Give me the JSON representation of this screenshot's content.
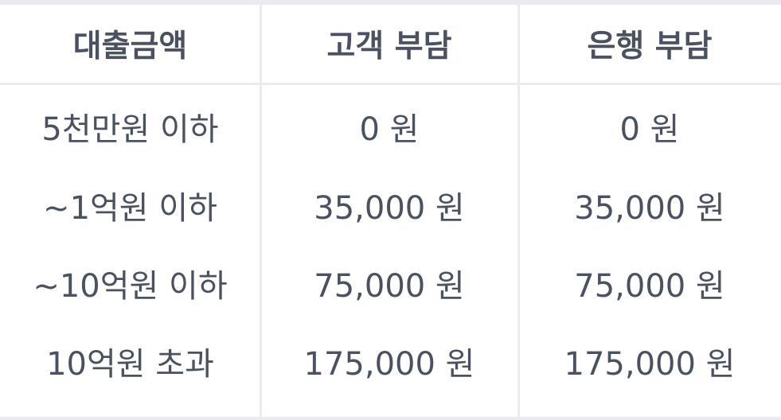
{
  "table": {
    "headers": [
      "대출금액",
      "고객 부담",
      "은행 부담"
    ],
    "rows": [
      [
        "5천만원 이하",
        "0 원",
        "0 원"
      ],
      [
        "~1억원 이하",
        "35,000 원",
        "35,000 원"
      ],
      [
        "~10억원 이하",
        "75,000 원",
        "75,000 원"
      ],
      [
        "10억원 초과",
        "175,000 원",
        "175,000 원"
      ]
    ]
  },
  "colors": {
    "text": "#4a5160",
    "rule": "#e9ebee",
    "background": "#ffffff"
  }
}
